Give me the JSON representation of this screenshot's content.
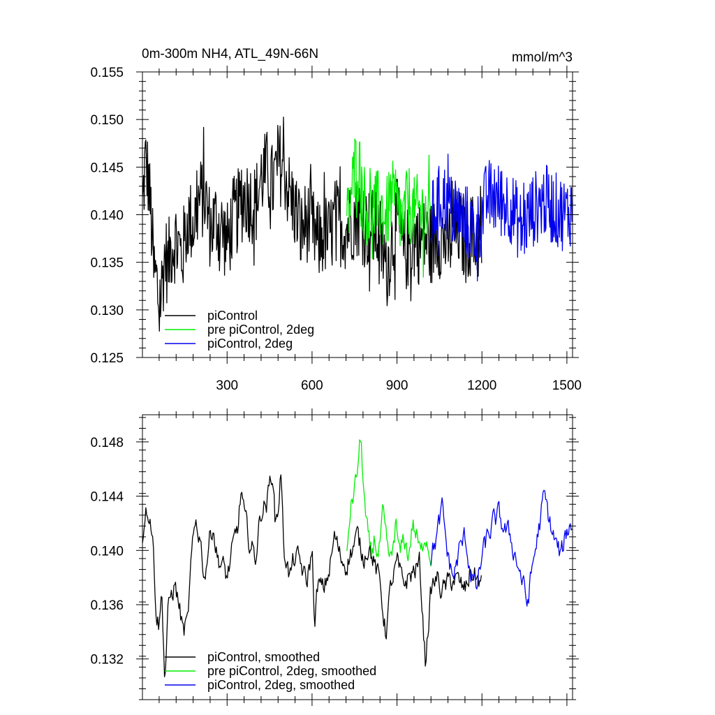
{
  "chart_data": [
    {
      "type": "line",
      "title": "0m-300m NH4, ATL_49N-66N",
      "units": "mmol/m^3",
      "xlim": [
        1,
        1520
      ],
      "ylim": [
        0.125,
        0.155
      ],
      "xticks": [
        300,
        600,
        900,
        1200,
        1500
      ],
      "yticks": [
        0.125,
        0.13,
        0.135,
        0.14,
        0.145,
        0.15,
        0.155
      ],
      "ytick_labels": [
        "0.125",
        "0.130",
        "0.135",
        "0.140",
        "0.145",
        "0.150",
        "0.155"
      ],
      "xtick_labels": [
        "300",
        "600",
        "900",
        "1200",
        "1500"
      ],
      "legend_position": "bottom-left",
      "series": [
        {
          "name": "piControl",
          "color": "#000000",
          "x_start": 1,
          "x_end": 1200,
          "x": [
            1,
            11,
            21,
            31,
            41,
            51,
            61,
            71,
            81,
            91,
            101,
            121,
            141,
            161,
            181,
            201,
            221,
            241,
            261,
            281,
            301,
            321,
            341,
            361,
            381,
            401,
            421,
            441,
            461,
            481,
            501,
            521,
            541,
            561,
            581,
            601,
            621,
            641,
            661,
            681,
            701,
            721,
            741,
            761,
            781,
            801,
            821,
            841,
            861,
            881,
            901,
            921,
            941,
            961,
            981,
            1001,
            1021,
            1041,
            1061,
            1081,
            1101,
            1121,
            1141,
            1161,
            1181,
            1200
          ],
          "values": [
            0.1405,
            0.1455,
            0.144,
            0.14,
            0.134,
            0.133,
            0.13,
            0.133,
            0.136,
            0.1345,
            0.1365,
            0.1375,
            0.1355,
            0.1395,
            0.139,
            0.1415,
            0.142,
            0.1385,
            0.1395,
            0.1385,
            0.137,
            0.1395,
            0.1405,
            0.142,
            0.1415,
            0.141,
            0.144,
            0.1445,
            0.143,
            0.1455,
            0.145,
            0.142,
            0.1405,
            0.138,
            0.1395,
            0.1385,
            0.137,
            0.138,
            0.1375,
            0.1395,
            0.139,
            0.1385,
            0.1395,
            0.14,
            0.139,
            0.1385,
            0.1385,
            0.1375,
            0.134,
            0.137,
            0.1395,
            0.136,
            0.1365,
            0.1375,
            0.137,
            0.1375,
            0.137,
            0.138,
            0.1375,
            0.137,
            0.138,
            0.1385,
            0.137,
            0.138,
            0.1375,
            0.137
          ],
          "amplitude": 0.0045
        },
        {
          "name": "pre piControl, 2deg",
          "color": "#00ee00",
          "x_start": 723,
          "x_end": 1020,
          "x": [
            723,
            740,
            760,
            780,
            800,
            820,
            840,
            860,
            880,
            900,
            920,
            940,
            960,
            980,
            1000,
            1020
          ],
          "values": [
            0.139,
            0.1425,
            0.1465,
            0.142,
            0.14,
            0.1405,
            0.141,
            0.1395,
            0.142,
            0.1405,
            0.139,
            0.1415,
            0.14,
            0.1405,
            0.14,
            0.1395
          ],
          "amplitude": 0.004
        },
        {
          "name": "piControl, 2deg",
          "color": "#0000ee",
          "x_start": 1020,
          "x_end": 1520,
          "x": [
            1020,
            1060,
            1100,
            1140,
            1180,
            1220,
            1260,
            1300,
            1340,
            1380,
            1420,
            1460,
            1500,
            1520
          ],
          "values": [
            0.1395,
            0.142,
            0.14,
            0.1395,
            0.138,
            0.142,
            0.1415,
            0.141,
            0.1385,
            0.1405,
            0.1415,
            0.1405,
            0.14,
            0.141
          ],
          "amplitude": 0.004
        }
      ]
    },
    {
      "type": "line",
      "xlim": [
        1,
        1520
      ],
      "ylim": [
        0.129,
        0.15
      ],
      "xticks": [
        300,
        600,
        900,
        1200,
        1500
      ],
      "yticks": [
        0.132,
        0.136,
        0.14,
        0.144,
        0.148
      ],
      "ytick_labels": [
        "0.132",
        "0.136",
        "0.140",
        "0.144",
        "0.148"
      ],
      "legend_position": "bottom-left",
      "series": [
        {
          "name": "piControl, smoothed",
          "color": "#000000",
          "x": [
            1,
            10,
            20,
            30,
            40,
            50,
            60,
            70,
            80,
            90,
            100,
            115,
            130,
            145,
            160,
            175,
            190,
            205,
            220,
            235,
            250,
            265,
            280,
            300,
            320,
            340,
            350,
            360,
            380,
            400,
            420,
            440,
            460,
            470,
            480,
            490,
            500,
            510,
            520,
            540,
            560,
            580,
            600,
            610,
            620,
            640,
            660,
            680,
            700,
            720,
            740,
            760,
            780,
            800,
            820,
            840,
            860,
            880,
            900,
            920,
            940,
            960,
            980,
            1000,
            1020,
            1040,
            1060,
            1080,
            1100,
            1120,
            1140,
            1160,
            1180,
            1200
          ],
          "values": [
            0.1405,
            0.143,
            0.1432,
            0.1425,
            0.14,
            0.1355,
            0.1345,
            0.137,
            0.1303,
            0.135,
            0.1365,
            0.1375,
            0.136,
            0.134,
            0.1345,
            0.1395,
            0.142,
            0.141,
            0.138,
            0.1405,
            0.142,
            0.1395,
            0.139,
            0.138,
            0.14,
            0.142,
            0.1445,
            0.1425,
            0.1405,
            0.1395,
            0.143,
            0.1435,
            0.146,
            0.142,
            0.143,
            0.146,
            0.14,
            0.1395,
            0.138,
            0.1395,
            0.139,
            0.1375,
            0.14,
            0.1345,
            0.1375,
            0.137,
            0.1385,
            0.141,
            0.1395,
            0.139,
            0.14,
            0.141,
            0.1395,
            0.1405,
            0.139,
            0.1375,
            0.134,
            0.1375,
            0.139,
            0.1375,
            0.138,
            0.1385,
            0.139,
            0.1318,
            0.137,
            0.138,
            0.137,
            0.1375,
            0.138,
            0.1375,
            0.137,
            0.1385,
            0.138,
            0.1375
          ],
          "amplitude": 0.0012
        },
        {
          "name": "pre piControl, 2deg, smoothed",
          "color": "#00ee00",
          "x": [
            723,
            735,
            745,
            755,
            765,
            772,
            780,
            790,
            800,
            810,
            820,
            835,
            850,
            865,
            880,
            895,
            910,
            925,
            940,
            955,
            970,
            985,
            1000,
            1015,
            1020
          ],
          "values": [
            0.1395,
            0.143,
            0.144,
            0.145,
            0.147,
            0.1482,
            0.1455,
            0.142,
            0.1405,
            0.1395,
            0.141,
            0.1395,
            0.1425,
            0.14,
            0.139,
            0.142,
            0.1395,
            0.141,
            0.1395,
            0.142,
            0.141,
            0.1395,
            0.1415,
            0.14,
            0.1395
          ],
          "amplitude": 0.0012
        },
        {
          "name": "piControl, 2deg, smoothed",
          "color": "#0000ee",
          "x": [
            1020,
            1040,
            1060,
            1080,
            1100,
            1120,
            1140,
            1160,
            1180,
            1200,
            1220,
            1240,
            1260,
            1280,
            1300,
            1320,
            1340,
            1360,
            1380,
            1400,
            1420,
            1440,
            1460,
            1480,
            1500,
            1520
          ],
          "values": [
            0.1395,
            0.141,
            0.143,
            0.1395,
            0.138,
            0.14,
            0.141,
            0.1385,
            0.137,
            0.1395,
            0.141,
            0.142,
            0.1425,
            0.1415,
            0.141,
            0.1395,
            0.138,
            0.136,
            0.139,
            0.1415,
            0.144,
            0.142,
            0.1405,
            0.1395,
            0.1415,
            0.142
          ],
          "amplitude": 0.0012
        }
      ]
    }
  ]
}
